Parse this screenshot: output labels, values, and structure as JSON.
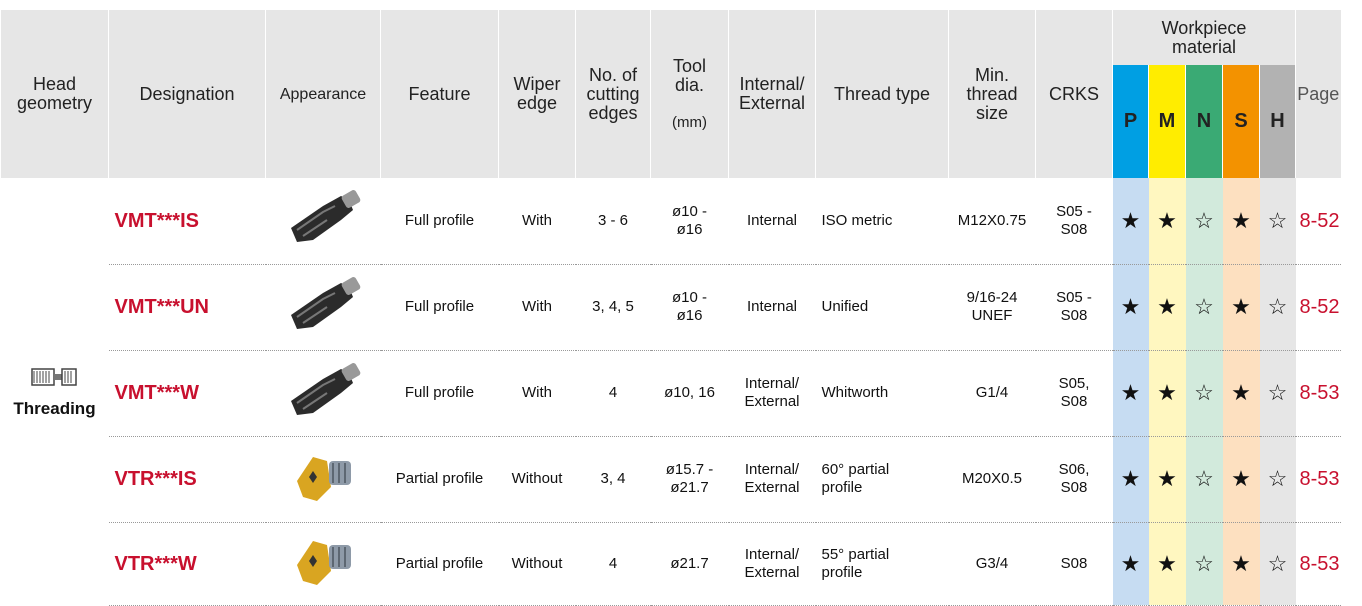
{
  "header": {
    "columns": [
      "Head\ngeometry",
      "Designation",
      "Appearance",
      "Feature",
      "Wiper\nedge",
      "No. of\ncutting\nedges",
      "Tool\ndia.",
      "Internal/\nExternal",
      "Thread type",
      "Min.\nthread\nsize",
      "CRKS",
      "Page"
    ],
    "tool_dia_unit": "(mm)",
    "workpiece_material": "Workpiece\nmaterial",
    "materials": [
      "P",
      "M",
      "N",
      "S",
      "H"
    ]
  },
  "head_geometry": "Threading",
  "rows": [
    {
      "designation": "VMT***IS",
      "feature": "Full profile",
      "wiper": "With",
      "edges": "3 - 6",
      "dia": "ø10 -\nø16",
      "int_ext": "Internal",
      "thread_type": "ISO metric",
      "min_size": "M12X0.75",
      "crks": "S05 -\nS08",
      "ratings": [
        "★",
        "★",
        "☆",
        "★",
        "☆"
      ],
      "page": "8-52"
    },
    {
      "designation": "VMT***UN",
      "feature": "Full profile",
      "wiper": "With",
      "edges": "3, 4, 5",
      "dia": "ø10 -\nø16",
      "int_ext": "Internal",
      "thread_type": "Unified",
      "min_size": "9/16-24\nUNEF",
      "crks": "S05 -\nS08",
      "ratings": [
        "★",
        "★",
        "☆",
        "★",
        "☆"
      ],
      "page": "8-52"
    },
    {
      "designation": "VMT***W",
      "feature": "Full profile",
      "wiper": "With",
      "edges": "4",
      "dia": "ø10, 16",
      "int_ext": "Internal/\nExternal",
      "thread_type": "Whitworth",
      "min_size": "G1/4",
      "crks": "S05,\nS08",
      "ratings": [
        "★",
        "★",
        "☆",
        "★",
        "☆"
      ],
      "page": "8-53"
    },
    {
      "designation": "VTR***IS",
      "feature": "Partial profile",
      "wiper": "Without",
      "edges": "3, 4",
      "dia": "ø15.7 -\nø21.7",
      "int_ext": "Internal/\nExternal",
      "thread_type": "60° partial\nprofile",
      "min_size": "M20X0.5",
      "crks": "S06,\nS08",
      "ratings": [
        "★",
        "★",
        "☆",
        "★",
        "☆"
      ],
      "page": "8-53"
    },
    {
      "designation": "VTR***W",
      "feature": "Partial profile",
      "wiper": "Without",
      "edges": "4",
      "dia": "ø21.7",
      "int_ext": "Internal/\nExternal",
      "thread_type": "55° partial\nprofile",
      "min_size": "G3/4",
      "crks": "S08",
      "ratings": [
        "★",
        "★",
        "☆",
        "★",
        "☆"
      ],
      "page": "8-53"
    }
  ]
}
